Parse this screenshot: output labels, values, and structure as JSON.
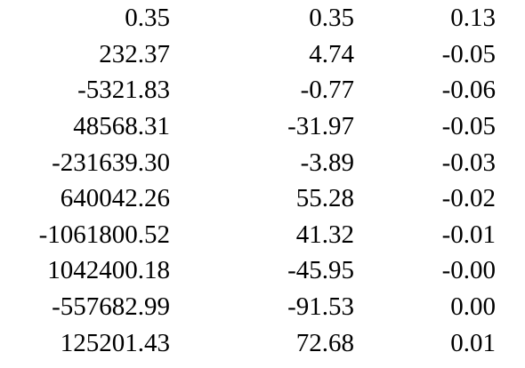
{
  "table": {
    "rows": [
      [
        "0.35",
        "0.35",
        "0.13"
      ],
      [
        "232.37",
        "4.74",
        "-0.05"
      ],
      [
        "-5321.83",
        "-0.77",
        "-0.06"
      ],
      [
        "48568.31",
        "-31.97",
        "-0.05"
      ],
      [
        "-231639.30",
        "-3.89",
        "-0.03"
      ],
      [
        "640042.26",
        "55.28",
        "-0.02"
      ],
      [
        "-1061800.52",
        "41.32",
        "-0.01"
      ],
      [
        "1042400.18",
        "-45.95",
        "-0.00"
      ],
      [
        "-557682.99",
        "-91.53",
        "0.00"
      ],
      [
        "125201.43",
        "72.68",
        "0.01"
      ]
    ]
  }
}
